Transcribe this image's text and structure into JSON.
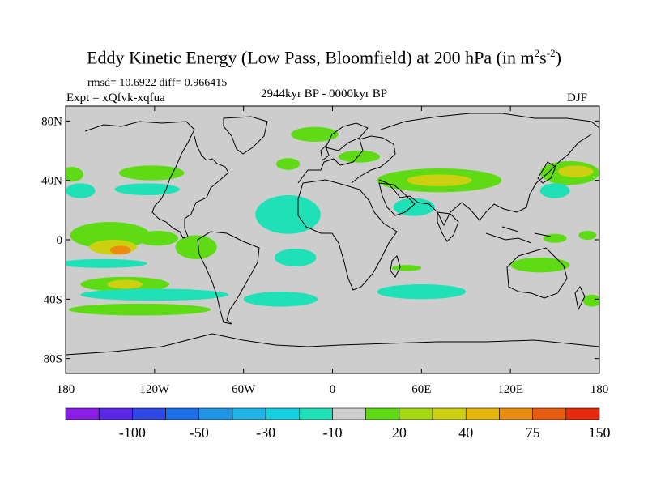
{
  "chart_data": {
    "type": "heatmap",
    "title_main": "Eddy Kinetic Energy (Low Pass, Bloomfield) at 200 hPa (in m",
    "title_sup1": "2",
    "title_mid": "s",
    "title_sup2": "-2",
    "title_end": ")",
    "stats": "rmsd= 10.6922 diff= 0.966415",
    "expt": "Expt = xQfvk-xqfua",
    "subtitle": "2944kyr BP - 0000kyr BP",
    "season": "DJF",
    "xlim": [
      -180,
      180
    ],
    "ylim": [
      -90,
      90
    ],
    "y_ticks": [
      {
        "value": 80,
        "label": "80N"
      },
      {
        "value": 40,
        "label": "40N"
      },
      {
        "value": 0,
        "label": "0"
      },
      {
        "value": -40,
        "label": "40S"
      },
      {
        "value": -80,
        "label": "80S"
      }
    ],
    "x_ticks": [
      {
        "value": -180,
        "label": "180"
      },
      {
        "value": -120,
        "label": "120W"
      },
      {
        "value": -60,
        "label": "60W"
      },
      {
        "value": 0,
        "label": "0"
      },
      {
        "value": 60,
        "label": "60E"
      },
      {
        "value": 120,
        "label": "120E"
      },
      {
        "value": 180,
        "label": "180"
      }
    ],
    "background_color": "#cdcdcd",
    "colorbar": {
      "colors": [
        "#8a1ee6",
        "#5a28e6",
        "#3048e6",
        "#1c6fe6",
        "#1f95e6",
        "#1eb4e6",
        "#16cfe0",
        "#20e0b8",
        "#cdcdcd",
        "#5edb14",
        "#a6d812",
        "#ccd010",
        "#e6b60d",
        "#ea8c10",
        "#e65c10",
        "#e62a0e"
      ],
      "labels": [
        "-100",
        "-50",
        "-30",
        "-10",
        "20",
        "40",
        "75",
        "150"
      ]
    },
    "regions": [
      {
        "category": "20",
        "lon": -176,
        "lat": 44,
        "rx": 8,
        "ry": 5
      },
      {
        "category": "20",
        "lon": -150,
        "lat": 3,
        "rx": 27,
        "ry": 9
      },
      {
        "category": "20",
        "lon": -118,
        "lat": 1,
        "rx": 14,
        "ry": 5
      },
      {
        "category": "20",
        "lon": -92,
        "lat": -5,
        "rx": 14,
        "ry": 8
      },
      {
        "category": "20",
        "lon": -140,
        "lat": -30,
        "rx": 30,
        "ry": 5
      },
      {
        "category": "20",
        "lon": -130,
        "lat": -47,
        "rx": 48,
        "ry": 4
      },
      {
        "category": "20",
        "lon": -122,
        "lat": 45,
        "rx": 22,
        "ry": 5
      },
      {
        "category": "20",
        "lon": -12,
        "lat": 71,
        "rx": 16,
        "ry": 5
      },
      {
        "category": "20",
        "lon": -30,
        "lat": 51,
        "rx": 8,
        "ry": 4
      },
      {
        "category": "20",
        "lon": 18,
        "lat": 56,
        "rx": 14,
        "ry": 4
      },
      {
        "category": "20",
        "lon": 72,
        "lat": 40,
        "rx": 42,
        "ry": 8
      },
      {
        "category": "20",
        "lon": 160,
        "lat": 45,
        "rx": 20,
        "ry": 8
      },
      {
        "category": "20",
        "lon": 150,
        "lat": 1,
        "rx": 8,
        "ry": 3
      },
      {
        "category": "20",
        "lon": 172,
        "lat": 3,
        "rx": 6,
        "ry": 3
      },
      {
        "category": "20",
        "lon": 140,
        "lat": -17,
        "rx": 20,
        "ry": 5
      },
      {
        "category": "20",
        "lon": 175,
        "lat": -41,
        "rx": 6,
        "ry": 4
      },
      {
        "category": "20",
        "lon": 50,
        "lat": -19,
        "rx": 10,
        "ry": 2
      },
      {
        "category": "20",
        "lon": -90,
        "lat": -37,
        "rx": 14,
        "ry": 3
      },
      {
        "category": "40",
        "lon": -148,
        "lat": -5,
        "rx": 16,
        "ry": 5
      },
      {
        "category": "40",
        "lon": -140,
        "lat": -30,
        "rx": 12,
        "ry": 3
      },
      {
        "category": "40",
        "lon": 72,
        "lat": 40,
        "rx": 22,
        "ry": 4
      },
      {
        "category": "40",
        "lon": 164,
        "lat": 46,
        "rx": 12,
        "ry": 4
      },
      {
        "category": "75",
        "lon": -143,
        "lat": -7,
        "rx": 7,
        "ry": 3
      },
      {
        "category": "-10",
        "lon": -170,
        "lat": 33,
        "rx": 10,
        "ry": 5
      },
      {
        "category": "-10",
        "lon": -125,
        "lat": 34,
        "rx": 22,
        "ry": 4
      },
      {
        "category": "-10",
        "lon": -30,
        "lat": 17,
        "rx": 22,
        "ry": 13
      },
      {
        "category": "-10",
        "lon": -25,
        "lat": -12,
        "rx": 14,
        "ry": 6
      },
      {
        "category": "-10",
        "lon": 55,
        "lat": 22,
        "rx": 14,
        "ry": 6
      },
      {
        "category": "-10",
        "lon": -155,
        "lat": -16,
        "rx": 30,
        "ry": 3
      },
      {
        "category": "-10",
        "lon": -120,
        "lat": -37,
        "rx": 50,
        "ry": 4
      },
      {
        "category": "-10",
        "lon": -35,
        "lat": -40,
        "rx": 25,
        "ry": 5
      },
      {
        "category": "-10",
        "lon": 60,
        "lat": -35,
        "rx": 30,
        "ry": 5
      },
      {
        "category": "-10",
        "lon": 150,
        "lat": 33,
        "rx": 10,
        "ry": 5
      }
    ]
  }
}
